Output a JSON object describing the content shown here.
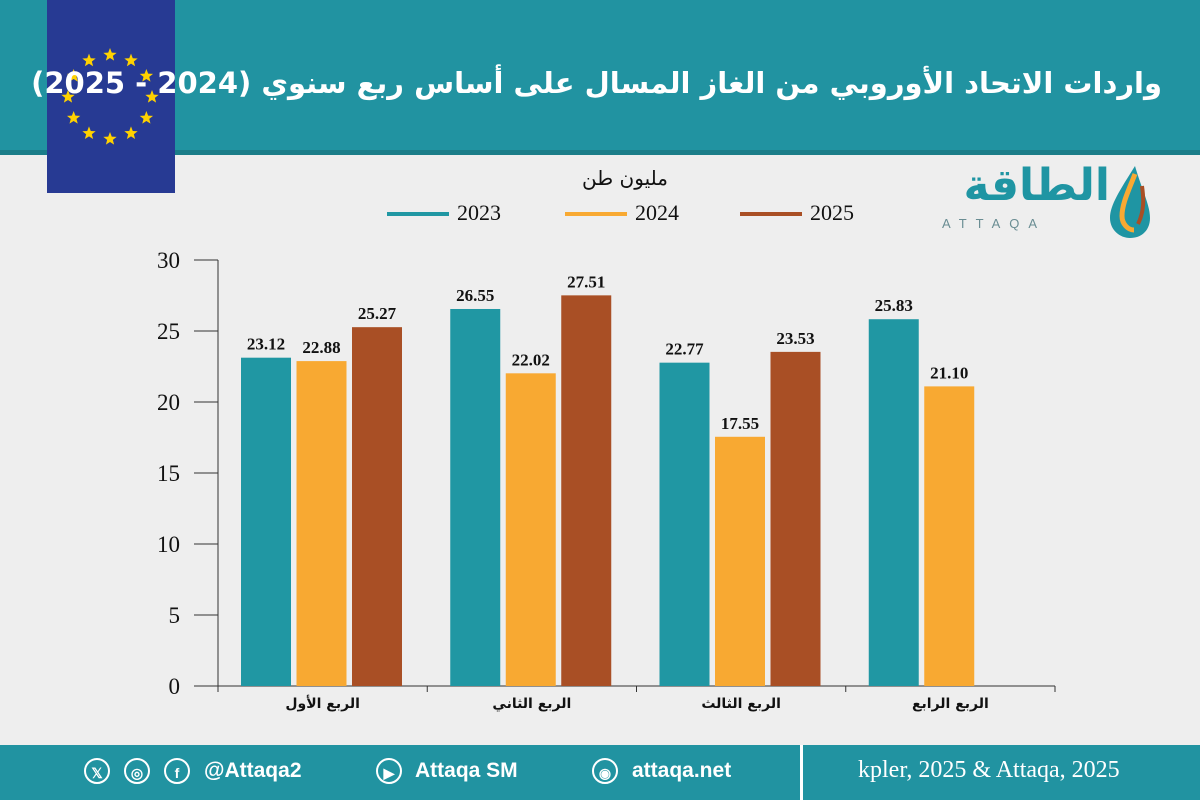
{
  "title": "واردات الاتحاد الأوروبي من الغاز المسال على أساس ربع سنوي (2024 - 2025)",
  "logo": {
    "text": "الطاقة",
    "sub": "ATTAQA"
  },
  "colors": {
    "header": "#2193a1",
    "flag": "#273a93",
    "star": "#ffd200"
  },
  "chart_data": {
    "type": "bar",
    "unit_label": "مليون طن",
    "categories": [
      "الربع الأول",
      "الربع الثاني",
      "الربع الثالث",
      "الربع الرابع"
    ],
    "series": [
      {
        "name": "2023",
        "color": "#2097a3",
        "values": [
          23.12,
          26.55,
          22.77,
          25.83
        ],
        "labels": [
          "23.12",
          "26.55",
          "22.77",
          "25.83"
        ]
      },
      {
        "name": "2024",
        "color": "#f8a932",
        "values": [
          22.88,
          22.02,
          17.55,
          21.1
        ],
        "labels": [
          "22.88",
          "22.02",
          "17.55",
          "21.10"
        ]
      },
      {
        "name": "2025",
        "color": "#a94f25",
        "values": [
          25.27,
          27.51,
          23.53,
          null
        ],
        "labels": [
          "25.27",
          "27.51",
          "23.53",
          ""
        ]
      }
    ],
    "ylim": [
      0,
      30
    ],
    "yticks": [
      "0",
      "5",
      "10",
      "15",
      "20",
      "25",
      "30"
    ],
    "legend_position": "top-center"
  },
  "footer": {
    "social_handle": "@Attaqa2",
    "youtube": "Attaqa SM",
    "website": "attaqa.net",
    "source": "kpler, 2025 & Attaqa, 2025",
    "icons": [
      "x-icon",
      "instagram-icon",
      "facebook-icon",
      "youtube-icon",
      "globe-icon"
    ]
  }
}
